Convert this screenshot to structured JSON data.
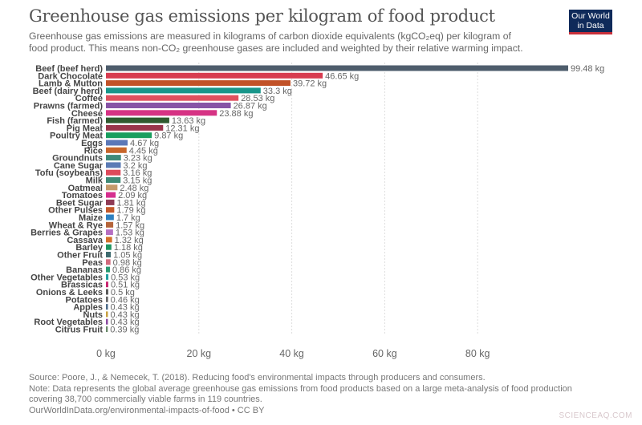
{
  "header": {
    "title": "Greenhouse gas emissions per kilogram of food product",
    "subtitle_line1": "Greenhouse gas emissions are measured in kilograms of carbon dioxide equivalents (kgCO₂eq) per kilogram of",
    "subtitle_line2": "food product. This means non-CO₂ greenhouse gases are included and weighted by their relative warming impact.",
    "logo_line1": "Our World",
    "logo_line2": "in Data"
  },
  "chart_data": {
    "type": "bar",
    "orientation": "horizontal",
    "title": "Greenhouse gas emissions per kilogram of food product",
    "unit": "kg",
    "xlim": [
      0,
      99.48
    ],
    "xticks": [
      0,
      20,
      40,
      60,
      80
    ],
    "xtick_labels": [
      "0 kg",
      "20 kg",
      "40 kg",
      "60 kg",
      "80 kg"
    ],
    "grid": "vertical dotted",
    "categories": [
      "Beef (beef herd)",
      "Dark Chocolate",
      "Lamb & Mutton",
      "Beef (dairy herd)",
      "Coffee",
      "Prawns (farmed)",
      "Cheese",
      "Fish (farmed)",
      "Pig Meat",
      "Poultry Meat",
      "Eggs",
      "Rice",
      "Groundnuts",
      "Cane Sugar",
      "Tofu (soybeans)",
      "Milk",
      "Oatmeal",
      "Tomatoes",
      "Beet Sugar",
      "Other Pulses",
      "Maize",
      "Wheat & Rye",
      "Berries & Grapes",
      "Cassava",
      "Barley",
      "Other Fruit",
      "Peas",
      "Bananas",
      "Other Vegetables",
      "Brassicas",
      "Onions & Leeks",
      "Potatoes",
      "Apples",
      "Nuts",
      "Root Vegetables",
      "Citrus Fruit"
    ],
    "values": [
      99.48,
      46.65,
      39.72,
      33.3,
      28.53,
      26.87,
      23.88,
      13.63,
      12.31,
      9.87,
      4.67,
      4.45,
      3.23,
      3.2,
      3.16,
      3.15,
      2.48,
      2.09,
      1.81,
      1.79,
      1.7,
      1.57,
      1.53,
      1.32,
      1.18,
      1.05,
      0.98,
      0.86,
      0.53,
      0.51,
      0.5,
      0.46,
      0.43,
      0.43,
      0.43,
      0.39
    ],
    "value_labels": [
      "99.48 kg",
      "46.65 kg",
      "39.72 kg",
      "33.3 kg",
      "28.53 kg",
      "26.87 kg",
      "23.88 kg",
      "13.63 kg",
      "12.31 kg",
      "9.87 kg",
      "4.67 kg",
      "4.45 kg",
      "3.23 kg",
      "3.2 kg",
      "3.16 kg",
      "3.15 kg",
      "2.48 kg",
      "2.09 kg",
      "1.81 kg",
      "1.79 kg",
      "1.7 kg",
      "1.57 kg",
      "1.53 kg",
      "1.32 kg",
      "1.18 kg",
      "1.05 kg",
      "0.98 kg",
      "0.86 kg",
      "0.53 kg",
      "0.51 kg",
      "0.5 kg",
      "0.46 kg",
      "0.43 kg",
      "0.43 kg",
      "0.43 kg",
      "0.39 kg"
    ],
    "colors": [
      "#4e5d6c",
      "#d73c50",
      "#c15228",
      "#18968a",
      "#e0505e",
      "#8754a6",
      "#d63384",
      "#2f5a2f",
      "#99354b",
      "#1a9e5e",
      "#5b78b8",
      "#c8662b",
      "#3f8a7a",
      "#5b7bb5",
      "#dc4a5a",
      "#3f8a76",
      "#c49a6c",
      "#d6308f",
      "#8f3b55",
      "#c45a2a",
      "#2d80c0",
      "#b5653a",
      "#b66fc2",
      "#d3702a",
      "#1f9560",
      "#3f6b6f",
      "#d16a7c",
      "#2a9a72",
      "#22a0a0",
      "#c9256f",
      "#555555",
      "#666666",
      "#4a6a8a",
      "#c8a040",
      "#8a4aa0",
      "#6a8a6a"
    ]
  },
  "footer": {
    "source": "Source: Poore, J., & Nemecek, T. (2018). Reducing food's environmental impacts through producers and consumers.",
    "note_line1": "Note: Data represents the global average greenhouse gas emissions from food products based on a large meta-analysis of food production",
    "note_line2": "covering 38,700 commercially viable farms in 119 countries.",
    "url": "OurWorldInData.org/environmental-impacts-of-food • CC BY"
  },
  "watermark": "SCIENCEAQ.COM"
}
